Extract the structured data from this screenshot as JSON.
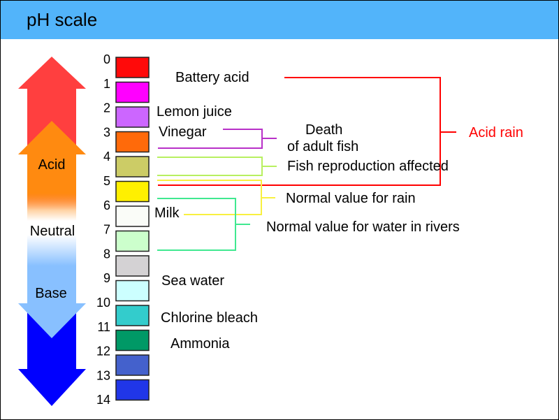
{
  "title": "pH scale",
  "colors": {
    "header": "#52b4fa",
    "acid_arrow_top": "#ff3f3f",
    "acid_arrow": "#ff8a10",
    "base_arrow": "#88c0ff",
    "base_arrow_bottom": "#0000ff",
    "acid_rain": "#ff0000"
  },
  "arrow_labels": {
    "acid": "Acid",
    "neutral": "Neutral",
    "base": "Base"
  },
  "scale_numbers": [
    "0",
    "1",
    "2",
    "3",
    "4",
    "5",
    "6",
    "7",
    "8",
    "9",
    "10",
    "11",
    "12",
    "13",
    "14"
  ],
  "swatches": [
    "#ff0a0a",
    "#ff00ff",
    "#cc66ff",
    "#ff6a0a",
    "#cccc66",
    "#fff000",
    "#fafcf8",
    "#ccffcc",
    "#d4d2d4",
    "#ccffff",
    "#33cccc",
    "#009966",
    "#4461cc",
    "#2036e8"
  ],
  "substances": {
    "battery_acid": "Battery acid",
    "lemon_juice": "Lemon juice",
    "vinegar": "Vinegar",
    "milk": "Milk",
    "sea_water": "Sea water",
    "chlorine_bleach": "Chlorine bleach",
    "ammonia": "Ammonia"
  },
  "effects": {
    "death_line1": "Death",
    "death_line2": "of adult fish",
    "fish_reproduction": "Fish reproduction affected",
    "normal_rain": "Normal value for rain",
    "normal_rivers": "Normal value for water in rivers",
    "acid_rain": "Acid rain"
  },
  "bracket_colors": {
    "death": "#b830c8",
    "reproduction": "#b8f060",
    "rain": "#f8f040",
    "rivers": "#40e890",
    "acid_rain": "#ff0000"
  }
}
